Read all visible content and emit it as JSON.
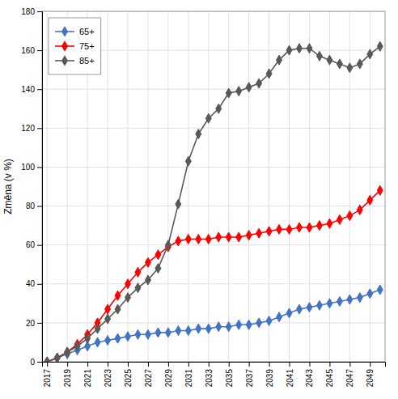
{
  "chart_data": {
    "type": "line",
    "y_label": "Změna (v %)",
    "x": [
      2017,
      2018,
      2019,
      2020,
      2021,
      2022,
      2023,
      2024,
      2025,
      2026,
      2027,
      2028,
      2029,
      2030,
      2031,
      2032,
      2033,
      2034,
      2035,
      2036,
      2037,
      2038,
      2039,
      2040,
      2041,
      2042,
      2043,
      2044,
      2045,
      2046,
      2047,
      2048,
      2049,
      2050
    ],
    "series": [
      {
        "name": "65+",
        "color": "#4472C4",
        "values": [
          0,
          2,
          4,
          6,
          8,
          10,
          11,
          12,
          13,
          14,
          14,
          15,
          15,
          16,
          16,
          17,
          17,
          18,
          18,
          19,
          19,
          20,
          21,
          23,
          25,
          27,
          28,
          29,
          30,
          31,
          32,
          33,
          35,
          37
        ]
      },
      {
        "name": "75+",
        "color": "#FF0000",
        "values": [
          0,
          2,
          5,
          9,
          14,
          20,
          27,
          34,
          40,
          46,
          51,
          55,
          59,
          62,
          63,
          63,
          63,
          64,
          64,
          64,
          65,
          66,
          67,
          68,
          68,
          69,
          69,
          70,
          71,
          73,
          75,
          78,
          83,
          88
        ]
      },
      {
        "name": "85+",
        "color": "#595959",
        "values": [
          0,
          2,
          5,
          8,
          12,
          17,
          22,
          27,
          33,
          38,
          42,
          48,
          60,
          81,
          103,
          117,
          125,
          130,
          138,
          139,
          141,
          143,
          148,
          155,
          160,
          161,
          161,
          157,
          155,
          153,
          151,
          153,
          158,
          162
        ]
      }
    ],
    "marker": "diamond",
    "xlim": [
      2016.5,
      2050.5
    ],
    "xticks": [
      2017,
      2019,
      2021,
      2023,
      2025,
      2027,
      2029,
      2031,
      2033,
      2035,
      2037,
      2039,
      2041,
      2043,
      2045,
      2047,
      2049
    ],
    "ylim": [
      0,
      180
    ],
    "yticks": [
      0,
      20,
      40,
      60,
      80,
      100,
      120,
      140,
      160,
      180
    ],
    "grid": true,
    "legend": "upper-left"
  }
}
